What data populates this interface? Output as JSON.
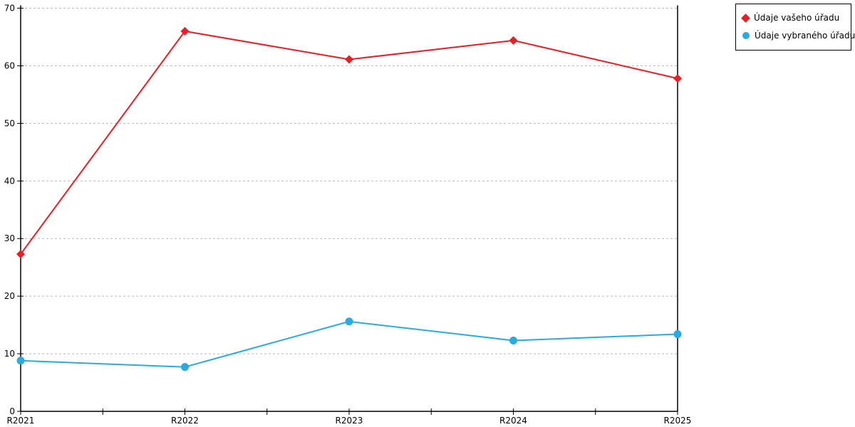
{
  "chart_data": {
    "type": "line",
    "title": "",
    "xlabel": "",
    "ylabel": "",
    "categories": [
      "R2021",
      "R2022",
      "R2023",
      "R2024",
      "R2025"
    ],
    "series": [
      {
        "name": "Údaje vašeho úřadu",
        "color": "#ee1c25",
        "marker": "diamond",
        "values": [
          27.3,
          66.0,
          61.1,
          64.4,
          57.8
        ]
      },
      {
        "name": "Údaje vybraného úřadu",
        "color": "#29abe2",
        "marker": "circle",
        "values": [
          8.8,
          7.7,
          15.6,
          12.3,
          13.4
        ]
      }
    ],
    "ylim": [
      0,
      70
    ],
    "yticks": [
      0,
      10,
      20,
      30,
      40,
      50,
      60,
      70
    ],
    "grid": "horizontal-dashed",
    "gridline_color": "#b8b8b8",
    "axis_color": "#000000",
    "legend_position": "top-right"
  },
  "legend": {
    "items": [
      {
        "label": "Údaje vašeho úřadu",
        "marker": "diamond",
        "color": "#ee1c25"
      },
      {
        "label": "Údaje vybraného úřadu",
        "marker": "circle",
        "color": "#29abe2"
      }
    ]
  }
}
